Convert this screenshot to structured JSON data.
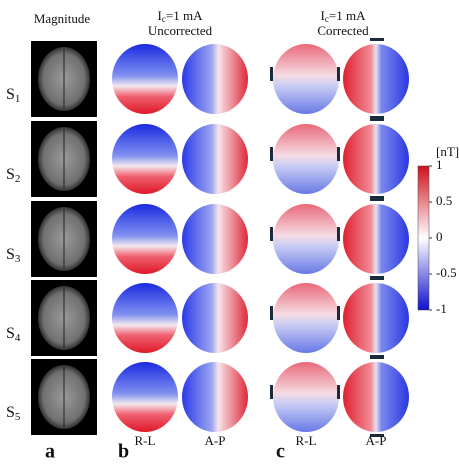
{
  "header": {
    "magnitude": "Magnitude",
    "uncorrected": {
      "symbol": "I",
      "subscript": "c",
      "text": "=1 mA",
      "title": "Uncorrected"
    },
    "corrected": {
      "symbol": "I",
      "subscript": "c",
      "text": "=1 mA",
      "title": "Corrected"
    }
  },
  "subjects": [
    {
      "letter": "S",
      "subscript": "1"
    },
    {
      "letter": "S",
      "subscript": "2"
    },
    {
      "letter": "S",
      "subscript": "3"
    },
    {
      "letter": "S",
      "subscript": "4"
    },
    {
      "letter": "S",
      "subscript": "5"
    }
  ],
  "colorbar": {
    "unit": "[nT]",
    "lim": [
      -1,
      1
    ],
    "ticks": [
      1,
      0.5,
      0,
      -0.5,
      -1
    ]
  },
  "footer": {
    "labels": [
      "R-L",
      "A-P",
      "R-L",
      "A-P"
    ],
    "panels": [
      "a",
      "b",
      "c"
    ]
  }
}
